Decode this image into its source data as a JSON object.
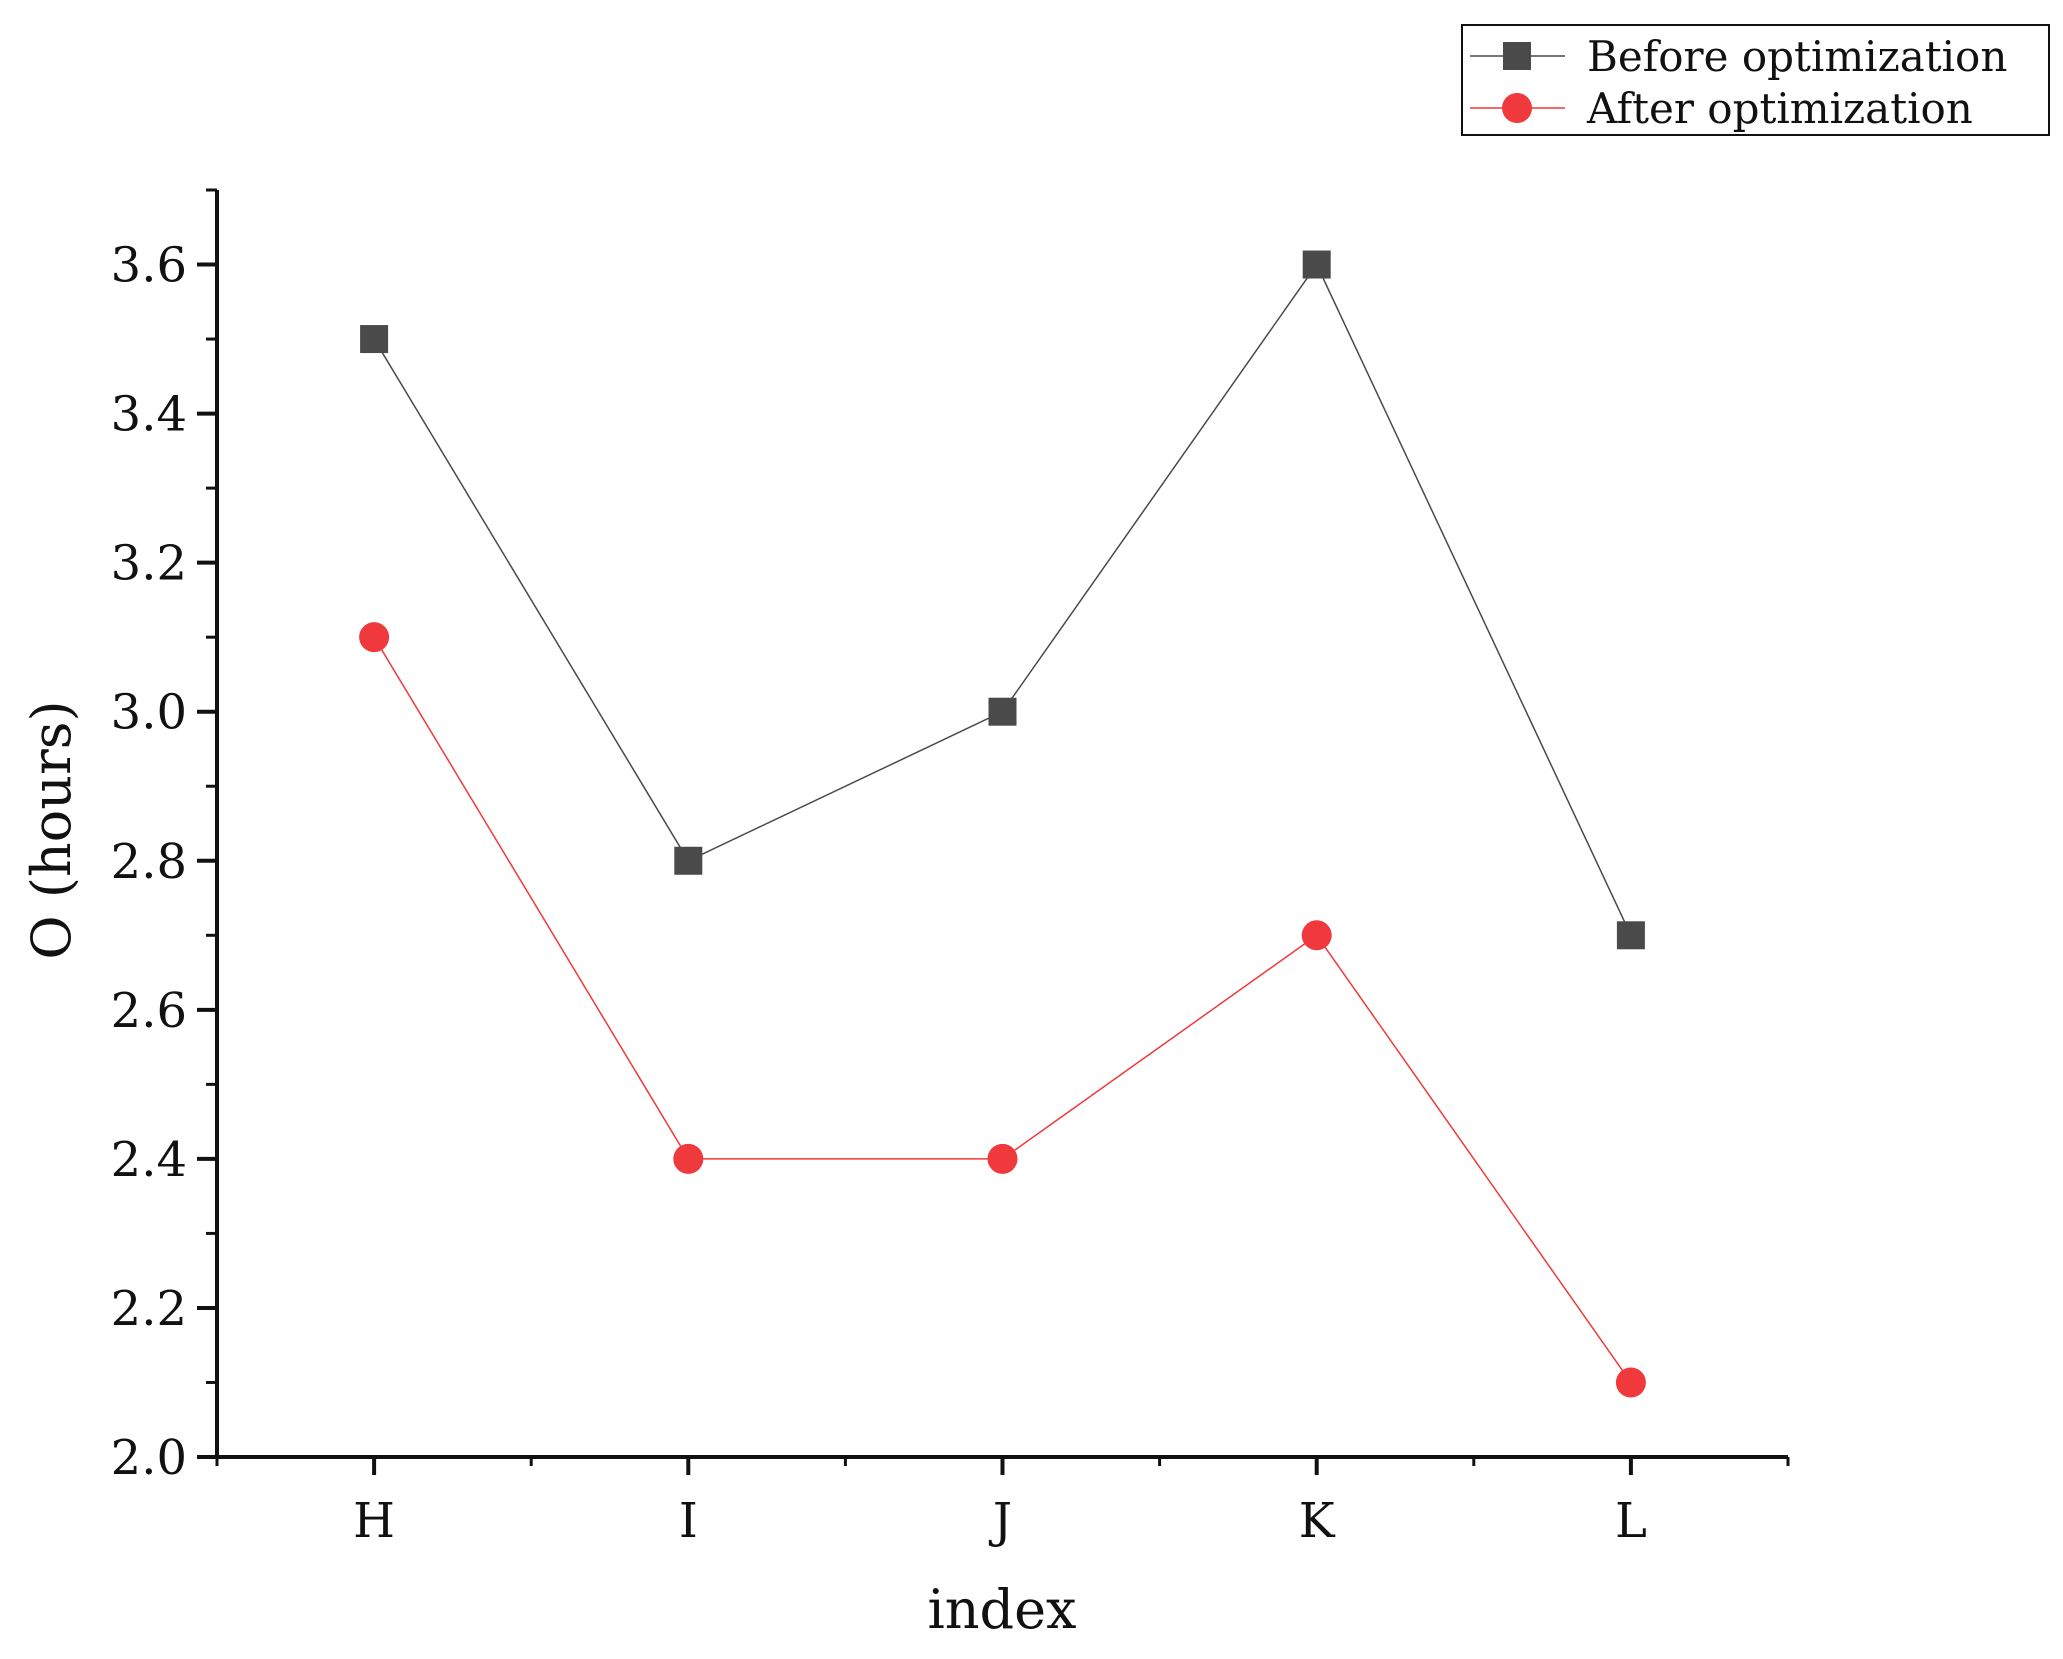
{
  "chart_data": {
    "type": "line",
    "title": "",
    "xlabel": "index",
    "ylabel": "O (hours)",
    "categories": [
      "H",
      "I",
      "J",
      "K",
      "L"
    ],
    "ylim": [
      2.0,
      3.7
    ],
    "yticks": [
      2.0,
      2.2,
      2.4,
      2.6,
      2.8,
      3.0,
      3.2,
      3.4,
      3.6
    ],
    "ytick_labels": [
      "2.0",
      "2.2",
      "2.4",
      "2.6",
      "2.8",
      "3.0",
      "3.2",
      "3.4",
      "3.6"
    ],
    "grid": false,
    "legend_position": "top-right",
    "series": [
      {
        "name": "Before optimization",
        "values": [
          3.5,
          2.8,
          3.0,
          3.6,
          2.7
        ],
        "color": "#4a4a4a",
        "marker": "square"
      },
      {
        "name": "After optimization",
        "values": [
          3.1,
          2.4,
          2.4,
          2.7,
          2.1
        ],
        "color": "#f0393c",
        "marker": "circle"
      }
    ]
  }
}
